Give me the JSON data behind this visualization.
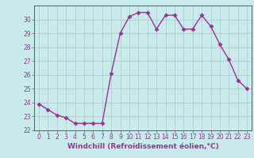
{
  "x": [
    0,
    1,
    2,
    3,
    4,
    5,
    6,
    7,
    8,
    9,
    10,
    11,
    12,
    13,
    14,
    15,
    16,
    17,
    18,
    19,
    20,
    21,
    22,
    23
  ],
  "y": [
    23.9,
    23.5,
    23.1,
    22.9,
    22.5,
    22.5,
    22.5,
    22.5,
    26.1,
    29.0,
    30.2,
    30.5,
    30.5,
    29.3,
    30.3,
    30.3,
    29.3,
    29.3,
    30.3,
    29.5,
    28.2,
    27.1,
    25.6,
    25.0
  ],
  "line_color": "#993399",
  "marker": "D",
  "markersize": 2.5,
  "linewidth": 1.0,
  "bg_color": "#c8eaea",
  "grid_color": "#b0c8c8",
  "xlabel": "Windchill (Refroidissement éolien,°C)",
  "ylabel": "",
  "xlim": [
    -0.5,
    23.5
  ],
  "ylim": [
    22,
    31
  ],
  "yticks": [
    22,
    23,
    24,
    25,
    26,
    27,
    28,
    29,
    30
  ],
  "xticks": [
    0,
    1,
    2,
    3,
    4,
    5,
    6,
    7,
    8,
    9,
    10,
    11,
    12,
    13,
    14,
    15,
    16,
    17,
    18,
    19,
    20,
    21,
    22,
    23
  ],
  "tick_label_fontsize": 5.5,
  "xlabel_fontsize": 6.5
}
